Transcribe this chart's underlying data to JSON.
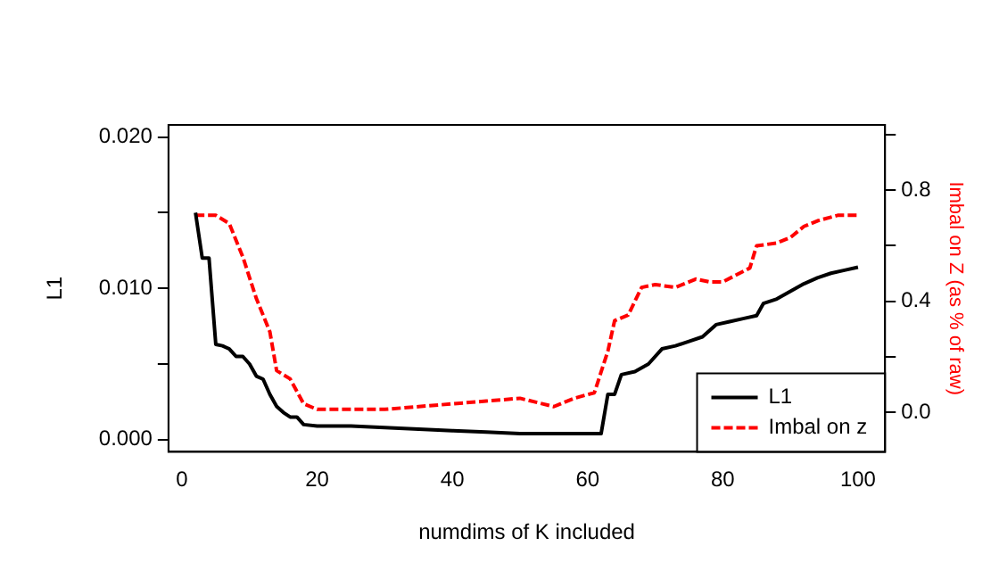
{
  "chart_data": {
    "type": "line",
    "xlabel": "numdims of K included",
    "ylabel": "L1",
    "y2label": "Imbal on Z (as % of raw)",
    "xlim": [
      -2,
      104
    ],
    "xticks": [
      0,
      20,
      40,
      60,
      80,
      100
    ],
    "ylim": [
      -0.0008,
      0.0208
    ],
    "yticks": [
      {
        "value": 0,
        "label": "0.000"
      },
      {
        "value": 0.005,
        "label": null
      },
      {
        "value": 0.01,
        "label": "0.010"
      },
      {
        "value": 0.015,
        "label": null
      },
      {
        "value": 0.02,
        "label": "0.020"
      }
    ],
    "y2lim": [
      -0.143,
      1.036
    ],
    "y2ticks": [
      {
        "value": 0,
        "label": "0.0"
      },
      {
        "value": 0.2,
        "label": null
      },
      {
        "value": 0.4,
        "label": "0.4"
      },
      {
        "value": 0.6,
        "label": null
      },
      {
        "value": 0.8,
        "label": "0.8"
      },
      {
        "value": 1.0,
        "label": null
      }
    ],
    "grid": false,
    "legend": "bottom right",
    "marker": "none",
    "series": [
      {
        "name": "L1",
        "color": "#000000",
        "line_style": "solid",
        "x": [
          2,
          3,
          4,
          5,
          6,
          7,
          8,
          9,
          10,
          11,
          12,
          13,
          14,
          15,
          16,
          17,
          18,
          20,
          25,
          30,
          35,
          40,
          45,
          50,
          55,
          62,
          63,
          64,
          65,
          67,
          69,
          71,
          73,
          75,
          77,
          79,
          81,
          83,
          85,
          86,
          88,
          90,
          92,
          94,
          96,
          98,
          100
        ],
        "values": [
          0.015,
          0.012,
          0.012,
          0.0063,
          0.0062,
          0.006,
          0.0055,
          0.0055,
          0.005,
          0.0042,
          0.004,
          0.003,
          0.0022,
          0.0018,
          0.0015,
          0.0015,
          0.001,
          0.0009,
          0.0009,
          0.0008,
          0.0007,
          0.0006,
          0.0005,
          0.0004,
          0.0004,
          0.0004,
          0.003,
          0.003,
          0.0043,
          0.0045,
          0.005,
          0.006,
          0.0062,
          0.0065,
          0.0068,
          0.0076,
          0.0078,
          0.008,
          0.0082,
          0.009,
          0.0093,
          0.0098,
          0.0103,
          0.0107,
          0.011,
          0.0112,
          0.0114
        ]
      },
      {
        "name": "Imbal on z",
        "color": "#ff0000",
        "line_style": "dashed",
        "axis": "y2",
        "x": [
          2,
          5,
          7,
          9,
          11,
          13,
          14,
          16,
          18,
          20,
          30,
          35,
          40,
          45,
          50,
          55,
          58,
          61,
          63,
          64,
          66,
          68,
          70,
          73,
          76,
          78,
          80,
          84,
          85,
          88,
          90,
          92,
          94,
          97,
          100
        ],
        "values": [
          0.71,
          0.71,
          0.68,
          0.56,
          0.41,
          0.29,
          0.15,
          0.12,
          0.03,
          0.01,
          0.01,
          0.02,
          0.03,
          0.04,
          0.05,
          0.02,
          0.05,
          0.07,
          0.22,
          0.33,
          0.35,
          0.45,
          0.46,
          0.45,
          0.48,
          0.47,
          0.47,
          0.52,
          0.6,
          0.61,
          0.63,
          0.67,
          0.69,
          0.71,
          0.71
        ]
      }
    ]
  }
}
